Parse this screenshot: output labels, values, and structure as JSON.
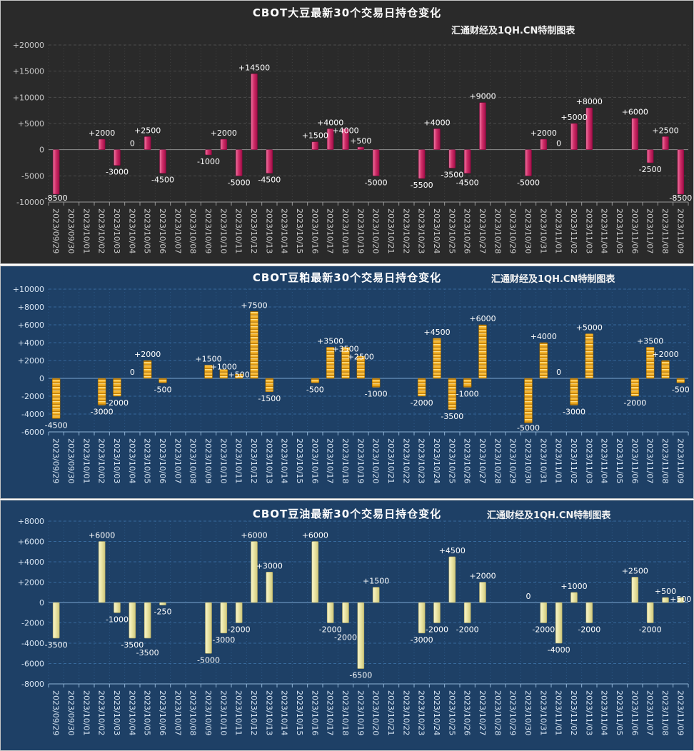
{
  "chart_data": [
    {
      "type": "bar",
      "title": "CBOT大豆最新30个交易日持仓变化",
      "subtitle": "汇通财经及1QH.CN特制图表",
      "xlabel": "",
      "ylabel": "",
      "ylim": [
        -10000,
        20000
      ],
      "ytick_step": 5000,
      "grid": true,
      "legend_position": "none",
      "bar_style": "solid",
      "categories": [
        "2023/09/29",
        "2023/09/30",
        "2023/10/01",
        "2023/10/02",
        "2023/10/03",
        "2023/10/04",
        "2023/10/05",
        "2023/10/06",
        "2023/10/07",
        "2023/10/08",
        "2023/10/09",
        "2023/10/10",
        "2023/10/11",
        "2023/10/12",
        "2023/10/13",
        "2023/10/14",
        "2023/10/15",
        "2023/10/16",
        "2023/10/17",
        "2023/10/18",
        "2023/10/19",
        "2023/10/20",
        "2023/10/21",
        "2023/10/22",
        "2023/10/23",
        "2023/10/24",
        "2023/10/25",
        "2023/10/26",
        "2023/10/27",
        "2023/10/28",
        "2023/10/29",
        "2023/10/30",
        "2023/10/31",
        "2023/11/01",
        "2023/11/02",
        "2023/11/03",
        "2023/11/04",
        "2023/11/05",
        "2023/11/06",
        "2023/11/07",
        "2023/11/08",
        "2023/11/09"
      ],
      "values": [
        -8500,
        null,
        null,
        2000,
        -3000,
        0,
        2500,
        -4500,
        null,
        null,
        -1000,
        2000,
        -5000,
        14500,
        -4500,
        null,
        null,
        1500,
        4000,
        4000,
        500,
        -5000,
        null,
        null,
        -5500,
        4000,
        -3500,
        -4500,
        9000,
        null,
        null,
        -5000,
        2000,
        0,
        5000,
        8000,
        null,
        null,
        6000,
        -2500,
        2500,
        -8500
      ],
      "colors": {
        "bg": "#2a2a2a",
        "grid_h": "#4c4c4c",
        "grid_v": "#424242",
        "zero": "#8f8f8f",
        "axis": "#9a9a9a",
        "text": "#c9c9c9",
        "label": "#ffffff",
        "bar": "#d02e68",
        "bar_light": "#ee7aa5",
        "bar_dark": "#9f0c47",
        "bar_stroke": "#7d0a3a"
      }
    },
    {
      "type": "bar",
      "title": "CBOT豆粕最新30个交易日持仓变化",
      "subtitle": "汇通财经及1QH.CN特制图表",
      "xlabel": "",
      "ylabel": "",
      "ylim": [
        -6000,
        10000
      ],
      "ytick_step": 2000,
      "grid": true,
      "legend_position": "none",
      "bar_style": "coins",
      "categories": [
        "2023/09/29",
        "2023/09/30",
        "2023/10/01",
        "2023/10/02",
        "2023/10/03",
        "2023/10/04",
        "2023/10/05",
        "2023/10/06",
        "2023/10/07",
        "2023/10/08",
        "2023/10/09",
        "2023/10/10",
        "2023/10/11",
        "2023/10/12",
        "2023/10/13",
        "2023/10/14",
        "2023/10/15",
        "2023/10/16",
        "2023/10/17",
        "2023/10/18",
        "2023/10/19",
        "2023/10/20",
        "2023/10/21",
        "2023/10/22",
        "2023/10/23",
        "2023/10/24",
        "2023/10/25",
        "2023/10/26",
        "2023/10/27",
        "2023/10/28",
        "2023/10/29",
        "2023/10/30",
        "2023/10/31",
        "2023/11/01",
        "2023/11/02",
        "2023/11/03",
        "2023/11/04",
        "2023/11/05",
        "2023/11/06",
        "2023/11/07",
        "2023/11/08",
        "2023/11/09"
      ],
      "values": [
        -4500,
        null,
        null,
        -3000,
        -2000,
        0,
        2000,
        -500,
        null,
        null,
        1500,
        1000,
        500,
        7500,
        -1500,
        null,
        null,
        -500,
        3500,
        3500,
        2500,
        -1000,
        null,
        null,
        -2000,
        4500,
        -3500,
        -1000,
        6000,
        null,
        null,
        -5000,
        4000,
        0,
        -3000,
        5000,
        null,
        null,
        -2000,
        3500,
        2000,
        -500
      ],
      "colors": {
        "bg": "#1e4066",
        "grid_h": "#37699c",
        "grid_v": "#2c5785",
        "zero": "#7ba6d0",
        "axis": "#8fb3d6",
        "text": "#d9e6f4",
        "label": "#ffffff",
        "bar": "#f5b42b",
        "bar_light": "#ffdf8a",
        "bar_dark": "#bf7e0a",
        "bar_stroke": "#8f5e00"
      }
    },
    {
      "type": "bar",
      "title": "CBOT豆油最新30个交易日持仓变化",
      "subtitle": "汇通财经及1QH.CN特制图表",
      "xlabel": "",
      "ylabel": "",
      "ylim": [
        -8000,
        8000
      ],
      "ytick_step": 2000,
      "grid": true,
      "legend_position": "none",
      "bar_style": "solid",
      "categories": [
        "2023/09/29",
        "2023/09/30",
        "2023/10/01",
        "2023/10/02",
        "2023/10/03",
        "2023/10/04",
        "2023/10/05",
        "2023/10/06",
        "2023/10/07",
        "2023/10/08",
        "2023/10/09",
        "2023/10/10",
        "2023/10/11",
        "2023/10/12",
        "2023/10/13",
        "2023/10/14",
        "2023/10/15",
        "2023/10/16",
        "2023/10/17",
        "2023/10/18",
        "2023/10/19",
        "2023/10/20",
        "2023/10/21",
        "2023/10/22",
        "2023/10/23",
        "2023/10/24",
        "2023/10/25",
        "2023/10/26",
        "2023/10/27",
        "2023/10/28",
        "2023/10/29",
        "2023/10/30",
        "2023/10/31",
        "2023/11/01",
        "2023/11/02",
        "2023/11/03",
        "2023/11/04",
        "2023/11/05",
        "2023/11/06",
        "2023/11/07",
        "2023/11/08",
        "2023/11/09"
      ],
      "values": [
        -3500,
        null,
        null,
        6000,
        -1000,
        -3500,
        -3500,
        -250,
        null,
        null,
        -5000,
        -3000,
        -2000,
        6000,
        3000,
        null,
        null,
        6000,
        -2000,
        -2000,
        -6500,
        1500,
        null,
        null,
        -3000,
        -2000,
        4500,
        -2000,
        2000,
        null,
        null,
        0,
        -2000,
        -4000,
        1000,
        -2000,
        null,
        null,
        2500,
        -2000,
        500,
        500
      ],
      "colors": {
        "bg": "#1e4066",
        "grid_h": "#37699c",
        "grid_v": "#2c5785",
        "zero": "#7ba6d0",
        "axis": "#8fb3d6",
        "text": "#d9e6f4",
        "label": "#ffffff",
        "bar": "#ebe6a6",
        "bar_light": "#f8f5cd",
        "bar_dark": "#d0c87c",
        "bar_stroke": "#a8a060"
      }
    }
  ]
}
